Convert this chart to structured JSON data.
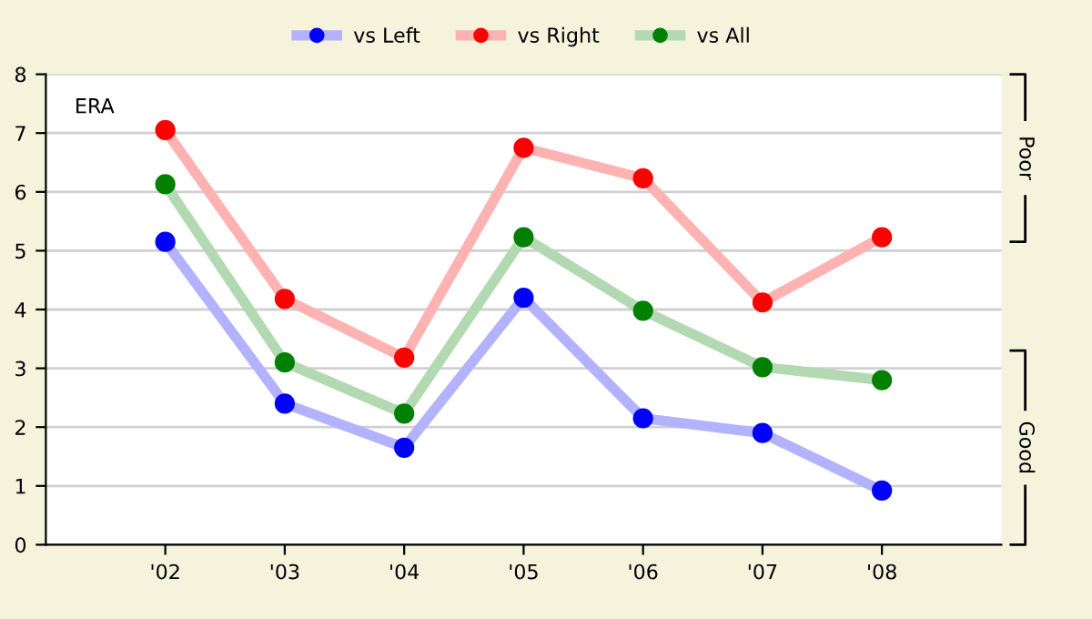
{
  "chart_data": {
    "type": "line",
    "ylabel": "ERA",
    "categories": [
      "'02",
      "'03",
      "'04",
      "'05",
      "'06",
      "'07",
      "'08"
    ],
    "series": [
      {
        "name": "vs Left",
        "color": "#0000ff",
        "values": [
          5.15,
          2.4,
          1.65,
          4.2,
          2.15,
          1.9,
          0.92
        ]
      },
      {
        "name": "vs Right",
        "color": "#ff0000",
        "values": [
          7.05,
          4.18,
          3.18,
          6.75,
          6.23,
          4.12,
          5.23
        ]
      },
      {
        "name": "vs All",
        "color": "#008000",
        "values": [
          6.13,
          3.1,
          2.23,
          5.23,
          3.98,
          3.02,
          2.8
        ]
      }
    ],
    "ylim": [
      0,
      8
    ],
    "yticks": [
      0,
      1,
      2,
      3,
      4,
      5,
      6,
      7,
      8
    ],
    "grid": "y",
    "legend": "top",
    "marker": "circle",
    "line_style": "solid",
    "annotations": [
      "Poor",
      "Good"
    ]
  }
}
